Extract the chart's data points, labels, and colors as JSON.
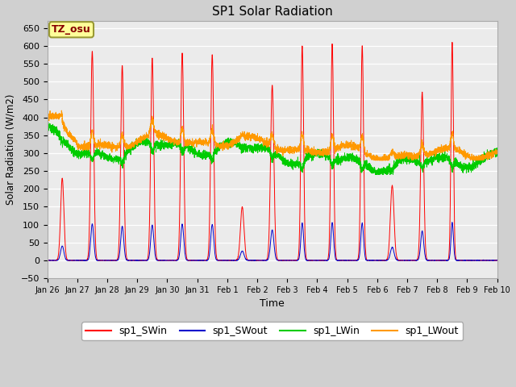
{
  "title": "SP1 Solar Radiation",
  "xlabel": "Time",
  "ylabel": "Solar Radiation (W/m2)",
  "ylim": [
    -50,
    670
  ],
  "yticks": [
    -50,
    0,
    50,
    100,
    150,
    200,
    250,
    300,
    350,
    400,
    450,
    500,
    550,
    600,
    650
  ],
  "xtick_labels": [
    "Jan 26",
    "Jan 27",
    "Jan 28",
    "Jan 29",
    "Jan 30",
    "Jan 31",
    "Feb 1",
    "Feb 2",
    "Feb 3",
    "Feb 4",
    "Feb 5",
    "Feb 6",
    "Feb 7",
    "Feb 8",
    "Feb 9",
    "Feb 10"
  ],
  "colors": {
    "SWin": "#ff0000",
    "SWout": "#0000cc",
    "LWin": "#00cc00",
    "LWout": "#ff9900"
  },
  "legend_labels": [
    "sp1_SWin",
    "sp1_SWout",
    "sp1_LWin",
    "sp1_LWout"
  ],
  "fig_bg_color": "#d0d0d0",
  "plot_bg_color": "#ebebeb",
  "annotation_text": "TZ_osu",
  "annotation_color": "#880000",
  "annotation_bg": "#ffff99",
  "annotation_border": "#999933",
  "n_days": 15,
  "pts_per_day": 288
}
